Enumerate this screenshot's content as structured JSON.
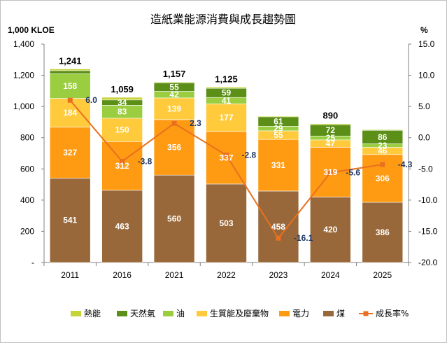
{
  "chart_data": {
    "type": "bar",
    "title": "造紙業能源消費與成長趨勢圖",
    "y_left_unit": "1,000 KLOE",
    "y_right_unit": "%",
    "ylim_left": [
      0,
      1400
    ],
    "ylim_right": [
      -20,
      15
    ],
    "yticks_left": [
      "-",
      "200",
      "400",
      "600",
      "800",
      "1,000",
      "1,200",
      "1,400"
    ],
    "yticks_right": [
      "-20.0",
      "-15.0",
      "-10.0",
      "-5.0",
      "0.0",
      "5.0",
      "10.0",
      "15.0"
    ],
    "categories": [
      "2011",
      "2016",
      "2021",
      "2022",
      "2023",
      "2024",
      "2025"
    ],
    "series": [
      {
        "name": "煤",
        "color": "#99683a",
        "values": [
          541,
          463,
          560,
          503,
          458,
          420,
          386
        ],
        "labels": [
          "541",
          "463",
          "560",
          "503",
          "458",
          "420",
          "386"
        ]
      },
      {
        "name": "電力",
        "color": "#ff9a13",
        "values": [
          327,
          312,
          356,
          337,
          331,
          319,
          306
        ],
        "labels": [
          "327",
          "312",
          "356",
          "337",
          "331",
          "319",
          "306"
        ]
      },
      {
        "name": "生質能及廢棄物",
        "color": "#ffcb3c",
        "values": [
          184,
          150,
          139,
          177,
          55,
          47,
          46
        ],
        "labels": [
          "184",
          "150",
          "139",
          "177",
          "55",
          "47",
          "46"
        ]
      },
      {
        "name": "油",
        "color": "#9acd3f",
        "values": [
          158,
          83,
          42,
          41,
          29,
          25,
          23
        ],
        "labels": [
          "158",
          "83",
          "42",
          "41",
          "29",
          "25",
          "23"
        ]
      },
      {
        "name": "天然氣",
        "color": "#5b8f17",
        "values": [
          20,
          34,
          55,
          59,
          61,
          72,
          86
        ],
        "labels": [
          "",
          "34",
          "55",
          "59",
          "61",
          "72",
          "86"
        ]
      },
      {
        "name": "熱能",
        "color": "#c6d43a",
        "values": [
          11,
          17,
          5,
          8,
          5,
          7,
          5
        ],
        "labels": [
          "",
          "",
          "",
          "",
          "",
          "",
          ""
        ]
      }
    ],
    "totals": [
      "1,241",
      "1,059",
      "1,157",
      "1,125",
      "",
      "890",
      ""
    ],
    "total_values": [
      1241,
      1059,
      1157,
      1125,
      939,
      890,
      852
    ],
    "line": {
      "name": "成長率%",
      "color": "#e8701f",
      "values": [
        6.0,
        -3.8,
        2.3,
        -2.8,
        -16.1,
        -5.6,
        -4.3
      ],
      "labels": [
        "6.0",
        "-3.8",
        "2.3",
        "-2.8",
        "-16.1",
        "-5.6",
        "-4.3"
      ]
    },
    "legend_items": [
      "熱能",
      "天然氣",
      "油",
      "生質能及廢棄物",
      "電力",
      "煤",
      "成長率%"
    ],
    "legend_position": "bottom",
    "grid": false
  }
}
